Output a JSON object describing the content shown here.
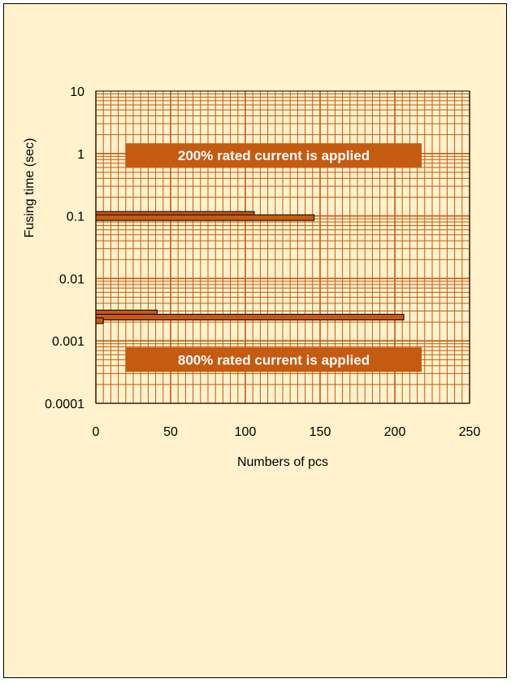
{
  "chart_data": {
    "type": "bar",
    "orientation": "horizontal",
    "xlabel": "Numbers of pcs",
    "ylabel": "Fusing time (sec)",
    "xlim": [
      0,
      250
    ],
    "x_ticks": [
      "0",
      "50",
      "100",
      "150",
      "200",
      "250"
    ],
    "y_scale": "log",
    "ylim": [
      0.0001,
      10
    ],
    "y_ticks": [
      "10",
      "1",
      "0.1",
      "0.01",
      "0.001",
      "0.0001"
    ],
    "grid": true,
    "bars": [
      {
        "y": 0.106,
        "value": 106
      },
      {
        "y": 0.094,
        "value": 146
      },
      {
        "y": 0.0028,
        "value": 41
      },
      {
        "y": 0.0024,
        "value": 206
      },
      {
        "y": 0.0021,
        "value": 5
      }
    ],
    "annotations": [
      {
        "text": "200% rated current is applied",
        "y": 0.93
      },
      {
        "text": "800% rated current is applied",
        "y": 0.0005
      }
    ],
    "colors": {
      "background": "#fff2cc",
      "grid": "#c55a11",
      "bar_fill": "#c55a11",
      "annotation_fill": "#c55a11",
      "annotation_text": "#ffffff"
    }
  }
}
